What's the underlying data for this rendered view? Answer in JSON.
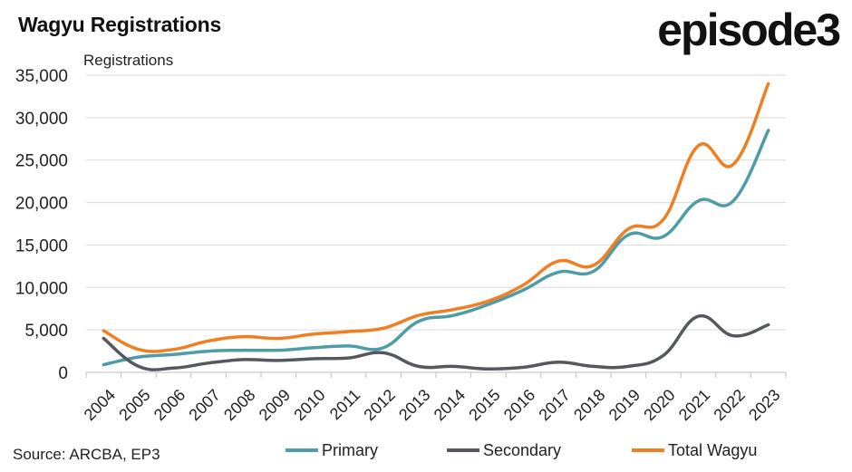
{
  "header": {
    "title": "Wagyu Registrations",
    "logo_text": "episode3"
  },
  "footer": {
    "source": "Source: ARCBA, EP3"
  },
  "chart_data": {
    "type": "line",
    "title": "Wagyu Registrations",
    "ylabel": "Registrations",
    "xlabel": "",
    "x": [
      "2004",
      "2005",
      "2006",
      "2007",
      "2008",
      "2009",
      "2010",
      "2011",
      "2012",
      "2013",
      "2014",
      "2015",
      "2016",
      "2017",
      "2018",
      "2019",
      "2020",
      "2021",
      "2022",
      "2023"
    ],
    "ylim": [
      0,
      35000
    ],
    "yticks": [
      0,
      5000,
      10000,
      15000,
      20000,
      25000,
      30000,
      35000
    ],
    "ytick_labels": [
      "0",
      "5,000",
      "10,000",
      "15,000",
      "20,000",
      "25,000",
      "30,000",
      "35,000"
    ],
    "grid": "horizontal",
    "legend": "bottom",
    "series": [
      {
        "name": "Primary",
        "color": "#4e9ca8",
        "values": [
          900,
          1800,
          2100,
          2500,
          2600,
          2600,
          2900,
          3100,
          2900,
          6000,
          6700,
          8000,
          9700,
          11800,
          11900,
          16200,
          16000,
          20200,
          20200,
          28500
        ]
      },
      {
        "name": "Secondary",
        "color": "#55595d",
        "values": [
          4000,
          700,
          500,
          1100,
          1500,
          1400,
          1600,
          1700,
          2300,
          700,
          700,
          400,
          600,
          1200,
          700,
          700,
          2000,
          6600,
          4300,
          5600
        ]
      },
      {
        "name": "Total Wagyu",
        "color": "#f07f22",
        "values": [
          4900,
          2700,
          2700,
          3700,
          4200,
          4000,
          4500,
          4800,
          5200,
          6700,
          7400,
          8400,
          10300,
          13100,
          12600,
          16900,
          18000,
          26700,
          24500,
          34000
        ]
      }
    ]
  }
}
